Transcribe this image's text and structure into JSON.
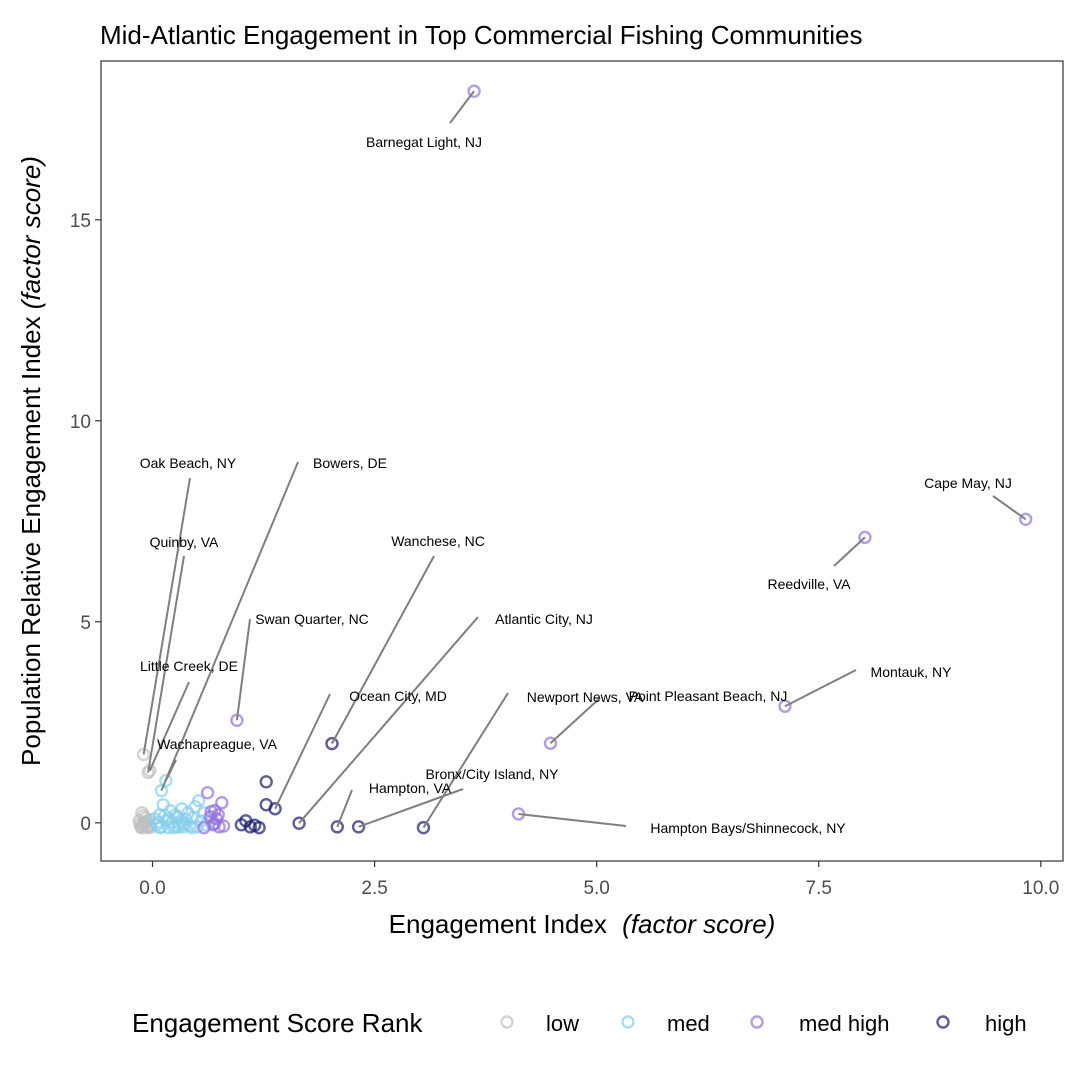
{
  "chart_data": {
    "type": "scatter",
    "title": "Mid-Atlantic Engagement in Top Commercial Fishing Communities",
    "xlabel": "Engagement Index",
    "xlabel_italic": "(factor score)",
    "ylabel": "Population Relative Engagement Index",
    "ylabel_italic": "(factor score)",
    "xlim": [
      -0.58,
      10.25
    ],
    "ylim": [
      -0.95,
      18.95
    ],
    "x_ticks": [
      0,
      2.5,
      5,
      7.5,
      10
    ],
    "x_tick_labels": [
      "0.0",
      "2.5",
      "5.0",
      "7.5",
      "10.0"
    ],
    "y_ticks": [
      0,
      5,
      10,
      15
    ],
    "y_tick_labels": [
      "0",
      "5",
      "10",
      "15"
    ],
    "grid": false,
    "legend": {
      "title": "Engagement Score Rank",
      "position": "bottom",
      "entries": [
        {
          "key": "low",
          "label": "low",
          "color": "#c0c0c0"
        },
        {
          "key": "med",
          "label": "med",
          "color": "#87ceeb"
        },
        {
          "key": "med high",
          "label": "med high",
          "color": "#9370db"
        },
        {
          "key": "high",
          "label": "high",
          "color": "#191970"
        }
      ]
    },
    "series": [
      {
        "name": "low",
        "points": [
          [
            -0.12,
            0.25
          ],
          [
            -0.1,
            0.18
          ],
          [
            -0.08,
            0.12
          ],
          [
            -0.15,
            0.05
          ],
          [
            -0.09,
            0.02
          ],
          [
            -0.14,
            -0.03
          ],
          [
            -0.11,
            -0.06
          ],
          [
            -0.07,
            -0.09
          ],
          [
            -0.13,
            -0.11
          ],
          [
            -0.05,
            -0.1
          ],
          [
            -0.03,
            -0.08
          ],
          [
            -0.06,
            0.03
          ],
          [
            -0.1,
            -0.01
          ],
          [
            -0.04,
            0.07
          ],
          [
            -0.12,
            -0.12
          ],
          [
            -0.08,
            -0.05
          ],
          [
            -0.02,
            -0.11
          ],
          [
            -0.06,
            -0.12
          ],
          [
            -0.1,
            1.7
          ],
          [
            -0.05,
            1.25
          ],
          [
            -0.03,
            1.3
          ]
        ]
      },
      {
        "name": "med",
        "points": [
          [
            0.02,
            0.1
          ],
          [
            0.05,
            -0.05
          ],
          [
            0.08,
            0.2
          ],
          [
            0.1,
            -0.1
          ],
          [
            0.12,
            0.45
          ],
          [
            0.15,
            0.05
          ],
          [
            0.18,
            -0.12
          ],
          [
            0.2,
            0.3
          ],
          [
            0.22,
            0.02
          ],
          [
            0.25,
            -0.08
          ],
          [
            0.28,
            0.15
          ],
          [
            0.3,
            -0.02
          ],
          [
            0.33,
            0.35
          ],
          [
            0.35,
            -0.1
          ],
          [
            0.38,
            0.08
          ],
          [
            0.4,
            0.25
          ],
          [
            0.42,
            -0.06
          ],
          [
            0.45,
            0.12
          ],
          [
            0.48,
            0.4
          ],
          [
            0.5,
            -0.1
          ],
          [
            0.52,
            0.55
          ],
          [
            0.55,
            0.05
          ],
          [
            0.58,
            0.25
          ],
          [
            0.6,
            -0.05
          ],
          [
            0.08,
            -0.12
          ],
          [
            0.14,
            0.18
          ],
          [
            0.24,
            -0.12
          ],
          [
            0.32,
            0.05
          ],
          [
            0.18,
            0.1
          ],
          [
            0.26,
            0.2
          ],
          [
            0.1,
            0.8
          ],
          [
            0.15,
            1.05
          ],
          [
            0.36,
            -0.04
          ],
          [
            0.44,
            -0.12
          ],
          [
            0.06,
            0.02
          ],
          [
            0.29,
            -0.11
          ]
        ]
      },
      {
        "name": "med high",
        "points": [
          [
            0.62,
            0.75
          ],
          [
            0.65,
            0.15
          ],
          [
            0.68,
            -0.05
          ],
          [
            0.7,
            0.3
          ],
          [
            0.72,
            0.1
          ],
          [
            0.75,
            -0.1
          ],
          [
            0.78,
            0.5
          ],
          [
            0.8,
            -0.08
          ],
          [
            0.66,
            0.28
          ],
          [
            0.74,
            0.2
          ],
          [
            0.58,
            -0.12
          ],
          [
            0.7,
            -0.02
          ],
          [
            0.95,
            2.55
          ],
          [
            3.62,
            18.2
          ],
          [
            8.02,
            7.1
          ],
          [
            9.83,
            7.55
          ],
          [
            7.12,
            2.9
          ],
          [
            4.48,
            1.98
          ],
          [
            4.12,
            0.22
          ]
        ]
      },
      {
        "name": "high",
        "points": [
          [
            1.0,
            -0.05
          ],
          [
            1.05,
            0.05
          ],
          [
            1.1,
            -0.1
          ],
          [
            1.15,
            -0.06
          ],
          [
            1.2,
            -0.12
          ],
          [
            1.28,
            0.45
          ],
          [
            1.38,
            0.35
          ],
          [
            1.28,
            1.02
          ],
          [
            1.65,
            -0.01
          ],
          [
            2.02,
            1.97
          ],
          [
            2.08,
            -0.1
          ],
          [
            2.32,
            -0.1
          ],
          [
            3.05,
            -0.12
          ]
        ]
      }
    ],
    "annotations": [
      {
        "label": "Barnegat Light, NJ",
        "x": 3.62,
        "y": 18.2,
        "color": "#9370db"
      },
      {
        "label": "Cape May, NJ",
        "x": 9.83,
        "y": 7.55,
        "color": "#9370db"
      },
      {
        "label": "Reedville, VA",
        "x": 8.02,
        "y": 7.1,
        "color": "#9370db"
      },
      {
        "label": "Montauk, NY",
        "x": 7.12,
        "y": 2.9,
        "color": "#9370db"
      },
      {
        "label": "Point Pleasant Beach, NJ",
        "x": 4.48,
        "y": 1.98,
        "color": "#9370db"
      },
      {
        "label": "Hampton Bays/Shinnecock, NY",
        "x": 4.12,
        "y": 0.22,
        "color": "#9370db"
      },
      {
        "label": "Swan Quarter, NC",
        "x": 0.95,
        "y": 2.55,
        "color": "#9370db"
      },
      {
        "label": "Oak Beach, NY",
        "x": -0.1,
        "y": 1.7,
        "color": "#c0c0c0"
      },
      {
        "label": "Quinby, VA",
        "x": -0.05,
        "y": 1.25,
        "color": "#c0c0c0"
      },
      {
        "label": "Little Creek, DE",
        "x": -0.03,
        "y": 1.3,
        "color": "#c0c0c0"
      },
      {
        "label": "Wachapreague, VA",
        "x": 0.15,
        "y": 1.05,
        "color": "#87ceeb"
      },
      {
        "label": "Bowers, DE",
        "x": 0.1,
        "y": 0.8,
        "color": "#87ceeb"
      },
      {
        "label": "Wanchese, NC",
        "x": 2.02,
        "y": 1.97,
        "color": "#191970"
      },
      {
        "label": "Atlantic City, NJ",
        "x": 1.65,
        "y": -0.01,
        "color": "#191970"
      },
      {
        "label": "Ocean City, MD",
        "x": 1.38,
        "y": 0.35,
        "color": "#191970"
      },
      {
        "label": "Newport News, VA",
        "x": 3.05,
        "y": -0.12,
        "color": "#191970"
      },
      {
        "label": "Hampton, VA",
        "x": 2.08,
        "y": -0.1,
        "color": "#191970"
      },
      {
        "label": "Bronx/City Island, NY",
        "x": 2.32,
        "y": -0.1,
        "color": "#191970"
      }
    ]
  }
}
